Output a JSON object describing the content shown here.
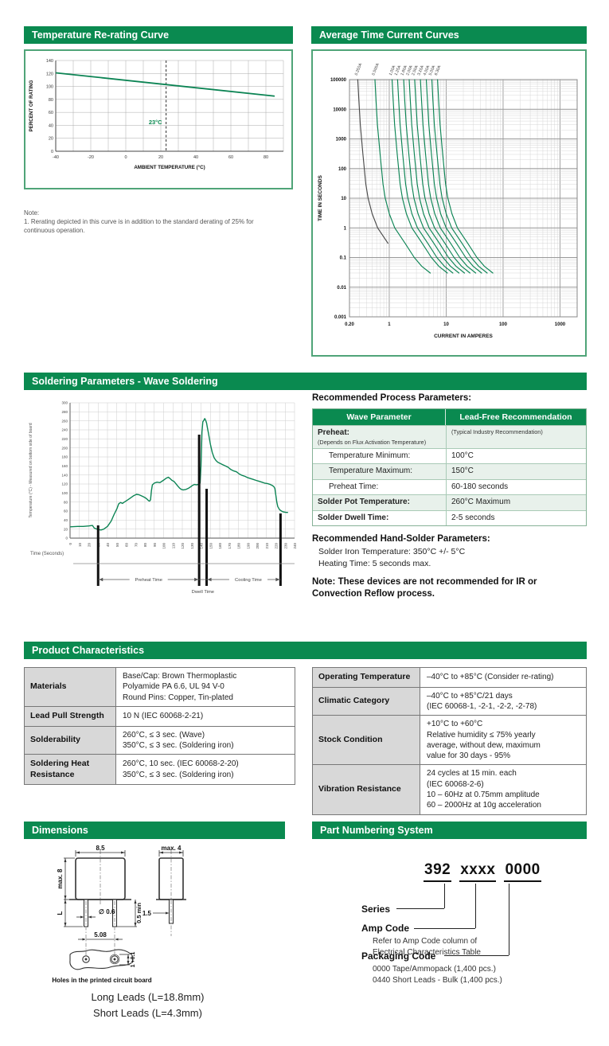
{
  "colors": {
    "header_green": "#0a8a50",
    "border_green": "#4fa478",
    "curve_green": "#0c8454",
    "row_green": "#e8f1eb",
    "label_gray": "#d8d8d8",
    "grid_gray": "#aaaaaa",
    "grid_light": "#cccccc"
  },
  "sections": {
    "rerating_title": "Temperature Re-rating Curve",
    "tcc_title": "Average Time Current Curves",
    "soldering_title": "Soldering Parameters - Wave Soldering",
    "product_title": "Product Characteristics",
    "dimensions_title": "Dimensions",
    "part_numbering_title": "Part Numbering System"
  },
  "rerating_note": {
    "label": "Note:",
    "line1": "1. Rerating depicted in this curve is in addition to the standard derating of 25% for",
    "line2": "continuous operation."
  },
  "process_params": {
    "title": "Recommended Process Parameters:",
    "header": [
      "Wave Parameter",
      "Lead-Free Recommendation"
    ],
    "rows": [
      {
        "param": "Preheat:",
        "param_sub": "(Depends on Flux Activation Temperature)",
        "value": "",
        "value_sub": "(Typical Industry Recommendation)",
        "bold": true,
        "shade": true
      },
      {
        "param": "Temperature Minimum:",
        "value": "100°C",
        "indent": true,
        "shade": false
      },
      {
        "param": "Temperature Maximum:",
        "value": "150°C",
        "indent": true,
        "shade": true
      },
      {
        "param": "Preheat Time:",
        "value": "60-180 seconds",
        "indent": true,
        "shade": false
      },
      {
        "param": "Solder Pot Temperature:",
        "value": "260°C Maximum",
        "bold": true,
        "shade": true
      },
      {
        "param": "Solder Dwell Time:",
        "value": "2-5 seconds",
        "bold": true,
        "shade": false
      }
    ]
  },
  "hand_solder": {
    "title": "Recommended Hand-Solder Parameters:",
    "lines": [
      "Solder Iron Temperature: 350°C +/- 5°C",
      "Heating Time: 5 seconds max."
    ],
    "note_line1": "Note: These devices are not recommended for IR or",
    "note_line2": "Convection Reflow process."
  },
  "product_characteristics": {
    "left_rows": [
      {
        "label": [
          "Materials"
        ],
        "value": [
          "Base/Cap: Brown Thermoplastic",
          "Polyamide PA 6.6, UL 94 V-0",
          "Round Pins: Copper, Tin-plated"
        ]
      },
      {
        "label": [
          "Lead Pull Strength"
        ],
        "value": [
          "10 N (IEC  60068-2-21)"
        ]
      },
      {
        "label": [
          "Solderability"
        ],
        "value": [
          "260°C, ≤ 3 sec. (Wave)",
          "350°C, ≤ 3 sec. (Soldering iron)"
        ]
      },
      {
        "label": [
          "Soldering Heat",
          "Resistance"
        ],
        "value": [
          "260°C, 10 sec. (IEC  60068-2-20)",
          "350°C, ≤ 3 sec. (Soldering iron)"
        ]
      }
    ],
    "right_rows": [
      {
        "label": [
          "Operating Temperature"
        ],
        "value": [
          "–40°C to +85°C (Consider re-rating)"
        ]
      },
      {
        "label": [
          "Climatic Category"
        ],
        "value": [
          "–40°C to +85°C/21 days",
          "(IEC 60068-1, -2-1, -2-2, -2-78)"
        ]
      },
      {
        "label": [
          "Stock Condition"
        ],
        "value": [
          "+10°C to +60°C",
          "Relative humidity ≤ 75% yearly",
          "average, without dew, maximum",
          "value for 30 days - 95%"
        ]
      },
      {
        "label": [
          "Vibration Resistance"
        ],
        "value": [
          "24 cycles at 15 min. each",
          "(IEC 60068-2-6)",
          "10 – 60Hz at 0.75mm amplitude",
          "60 – 2000Hz at 10g acceleration"
        ]
      }
    ]
  },
  "dimensions": {
    "body_width": "8.5",
    "side_width": "max. 4",
    "body_height": "max. 8",
    "lead_length": "L",
    "pin_diameter": "∅ 0.6",
    "side_pin_width": "1.5",
    "pin_min": "0.5 min",
    "pin_pitch": "5.08",
    "hole_diameter": "1 +0.1",
    "caption": "Holes in the printed circuit board",
    "long_leads": "Long Leads (L=18.8mm)",
    "short_leads": "Short Leads (L=4.3mm)"
  },
  "part_numbering": {
    "code_series": "392",
    "code_amp": "xxxx",
    "code_pkg": "0000",
    "series_label": "Series",
    "amp_label": "Amp Code",
    "amp_desc1": "Refer to Amp Code column of",
    "amp_desc2": "Electrical Characteristics Table",
    "pkg_label": "Packaging Code",
    "pkg_desc1": "0000 Tape/Ammopack (1,400 pcs.)",
    "pkg_desc2": "0440 Short Leads - Bulk (1,400 pcs.)"
  },
  "chart_data": [
    {
      "id": "rerating",
      "type": "line",
      "title": "Temperature Re-rating Curve",
      "xlabel": "AMBIENT TEMPERATURE (°C)",
      "ylabel": "PERCENT OF RATING",
      "xlim": [
        -40,
        90
      ],
      "ylim": [
        0,
        140
      ],
      "xticks": [
        -40,
        -20,
        0,
        20,
        40,
        60,
        80
      ],
      "yticks": [
        0,
        20,
        40,
        60,
        80,
        100,
        120,
        140
      ],
      "x_grid_step": 10,
      "y_grid_step": 20,
      "series": [
        {
          "name": "re-rating",
          "x": [
            -40,
            85
          ],
          "y": [
            121,
            85
          ]
        }
      ],
      "ref_line_x": 23,
      "ref_line_label": "23°C",
      "grid": true,
      "legend": "none"
    },
    {
      "id": "tcc",
      "type": "line",
      "scale": "log-log",
      "title": "Average Time Current Curves",
      "xlabel": "CURRENT IN AMPERES",
      "ylabel": "TIME IN SECONDS",
      "xlim": [
        0.2,
        2000
      ],
      "ylim": [
        0.001,
        100000
      ],
      "xticks": [
        0.2,
        1,
        10,
        100,
        1000
      ],
      "xtick_labels": [
        "0.20",
        "1",
        "10",
        "100",
        "1000"
      ],
      "yticks": [
        100000,
        10000,
        1000,
        100,
        10,
        1,
        0.1,
        0.01,
        0.001
      ],
      "ytick_labels": [
        "100000",
        "10000",
        "1000",
        "100",
        "10",
        "1",
        "0.1",
        "0.01",
        "0.001"
      ],
      "time_points": [
        100000,
        20000,
        3000,
        300,
        30,
        10,
        3,
        1,
        0.3,
        0.1,
        0.05,
        0.03
      ],
      "current_multipliers": [
        1.12,
        1.17,
        1.24,
        1.38,
        1.55,
        1.7,
        2.0,
        2.5,
        3.8,
        5.5,
        7.5,
        10.5
      ],
      "series": [
        {
          "label": "0.250A",
          "rating": 0.25,
          "color": "#4a4a4a",
          "end_time": 0.3
        },
        {
          "label": "0.500A",
          "rating": 0.5
        },
        {
          "label": "1.00A",
          "rating": 1.0
        },
        {
          "label": "1.25A",
          "rating": 1.25
        },
        {
          "label": "1.60A",
          "rating": 1.6
        },
        {
          "label": "2.00A",
          "rating": 2.0
        },
        {
          "label": "2.50A",
          "rating": 2.5
        },
        {
          "label": "3.15A",
          "rating": 3.15
        },
        {
          "label": "4.00A",
          "rating": 4.0
        },
        {
          "label": "5.00A",
          "rating": 5.0
        },
        {
          "label": "6.30A",
          "rating": 6.3
        }
      ],
      "grid": true,
      "legend": "rotated-top-labels"
    },
    {
      "id": "solder_profile",
      "type": "line",
      "title": "Soldering Parameters - Wave Soldering",
      "xlabel": "Time (Seconds)",
      "ylabel": "Temperature (°C) - Measured on bottom side of board",
      "xlim": [
        0,
        240
      ],
      "ylim": [
        0,
        300
      ],
      "x_tick_step": 10,
      "y_tick_step": 20,
      "profile": [
        [
          0,
          25
        ],
        [
          8,
          26
        ],
        [
          14,
          26
        ],
        [
          20,
          27
        ],
        [
          24,
          28
        ],
        [
          26,
          22
        ],
        [
          30,
          19
        ],
        [
          33,
          18
        ],
        [
          36,
          20
        ],
        [
          40,
          26
        ],
        [
          44,
          38
        ],
        [
          47,
          52
        ],
        [
          50,
          65
        ],
        [
          52,
          76
        ],
        [
          54,
          79
        ],
        [
          56,
          77
        ],
        [
          58,
          80
        ],
        [
          61,
          84
        ],
        [
          64,
          88
        ],
        [
          68,
          94
        ],
        [
          71,
          97
        ],
        [
          74,
          96
        ],
        [
          77,
          93
        ],
        [
          80,
          90
        ],
        [
          82,
          87
        ],
        [
          84,
          83
        ],
        [
          85,
          82
        ],
        [
          86,
          85
        ],
        [
          87,
          105
        ],
        [
          88,
          118
        ],
        [
          90,
          122
        ],
        [
          93,
          124
        ],
        [
          96,
          123
        ],
        [
          99,
          127
        ],
        [
          101,
          130
        ],
        [
          103,
          133
        ],
        [
          105,
          135
        ],
        [
          107,
          132
        ],
        [
          109,
          128
        ],
        [
          111,
          126
        ],
        [
          113,
          121
        ],
        [
          115,
          116
        ],
        [
          117,
          111
        ],
        [
          119,
          108
        ],
        [
          121,
          107
        ],
        [
          124,
          108
        ],
        [
          127,
          111
        ],
        [
          129,
          114
        ],
        [
          131,
          117
        ],
        [
          133,
          119
        ],
        [
          135,
          118
        ],
        [
          137,
          119
        ],
        [
          139,
          122
        ],
        [
          140,
          160
        ],
        [
          141,
          235
        ],
        [
          142,
          258
        ],
        [
          143,
          261
        ],
        [
          144,
          265
        ],
        [
          145,
          261
        ],
        [
          146,
          255
        ],
        [
          147,
          243
        ],
        [
          148,
          232
        ],
        [
          150,
          208
        ],
        [
          152,
          190
        ],
        [
          154,
          178
        ],
        [
          156,
          172
        ],
        [
          158,
          168
        ],
        [
          160,
          166
        ],
        [
          163,
          163
        ],
        [
          166,
          160
        ],
        [
          169,
          157
        ],
        [
          172,
          152
        ],
        [
          175,
          149
        ],
        [
          178,
          147
        ],
        [
          181,
          142
        ],
        [
          184,
          139
        ],
        [
          187,
          137
        ],
        [
          190,
          134
        ],
        [
          193,
          132
        ],
        [
          196,
          130
        ],
        [
          199,
          128
        ],
        [
          202,
          126
        ],
        [
          205,
          124
        ],
        [
          208,
          122
        ],
        [
          211,
          121
        ],
        [
          214,
          119
        ],
        [
          216,
          117
        ],
        [
          218,
          114
        ],
        [
          219,
          110
        ],
        [
          220,
          95
        ],
        [
          221,
          80
        ],
        [
          222,
          70
        ],
        [
          224,
          63
        ],
        [
          226,
          60
        ],
        [
          228,
          58
        ],
        [
          231,
          57
        ],
        [
          233,
          57
        ]
      ],
      "annotations": {
        "preheat": "Preheat Time",
        "dwell": "Dwell Time",
        "cooling": "Cooling Time"
      },
      "phase_marks": [
        30,
        138,
        146,
        225
      ],
      "grid": true,
      "legend": "none"
    }
  ]
}
